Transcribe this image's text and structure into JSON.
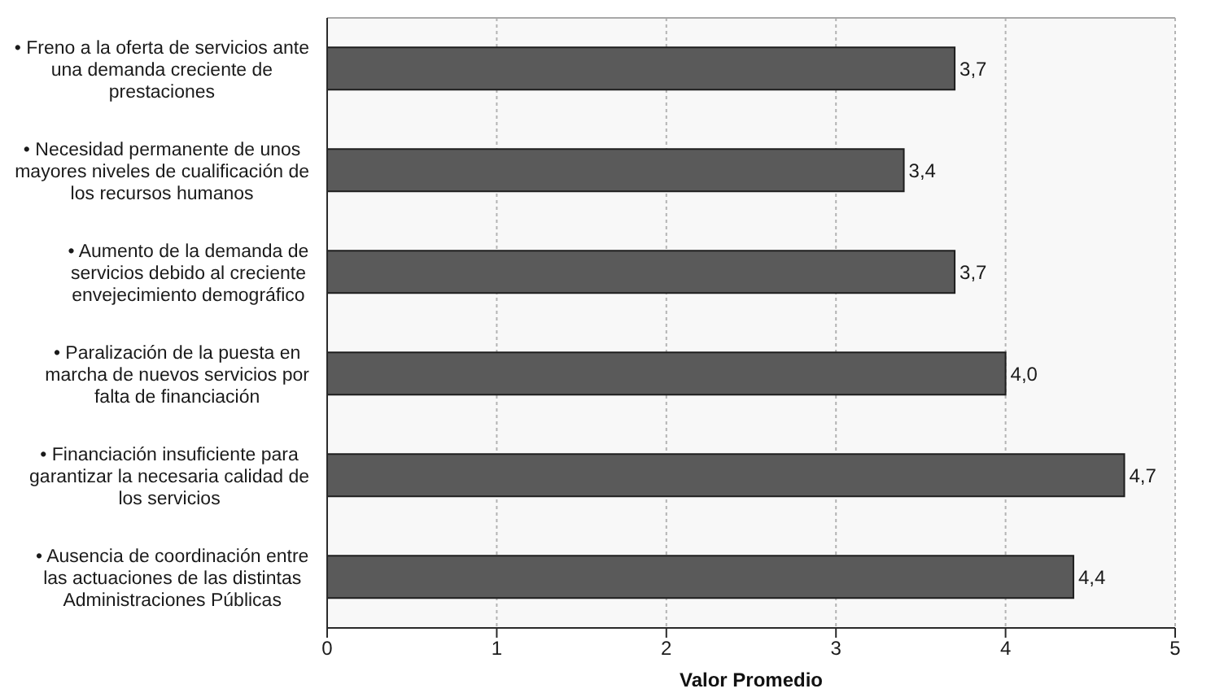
{
  "chart_data": {
    "type": "bar",
    "orientation": "horizontal",
    "categories": [
      "• Freno a la oferta de servicios ante una demanda creciente de prestaciones",
      "• Necesidad permanente de unos mayores niveles de cualificación de los recursos humanos",
      "• Aumento de la demanda de servicios debido al creciente envejecimiento demográfico",
      "• Paralización de la puesta en marcha de nuevos servicios por falta de financiación",
      "• Financiación insuficiente para garantizar la necesaria calidad de los servicios",
      "• Ausencia de coordinación entre las actuaciones de las distintas Administraciones Públicas"
    ],
    "values": [
      3.7,
      3.4,
      3.7,
      4.0,
      4.7,
      4.4
    ],
    "value_labels": [
      "3,7",
      "3,4",
      "3,7",
      "4,0",
      "4,7",
      "4,4"
    ],
    "color": "#5a5a5a",
    "xlabel": "Valor Promedio",
    "xlim": [
      0,
      5
    ],
    "xticks": [
      0,
      1,
      2,
      3,
      4,
      5
    ],
    "grid": "x"
  }
}
